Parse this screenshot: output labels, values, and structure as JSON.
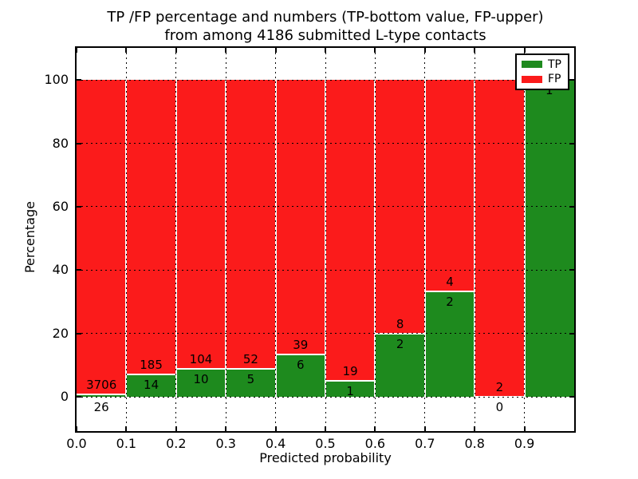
{
  "figure": {
    "background_color": "#ffffff",
    "text_color": "#000000"
  },
  "chart_data": {
    "type": "bar",
    "stacked": true,
    "normalized_to_percent": true,
    "title_lines": [
      "TP /FP percentage and numbers (TP-bottom value, FP-upper)",
      "from among 4186 submitted L-type contacts"
    ],
    "xlabel": "Predicted probability",
    "ylabel": "Percentage",
    "x_tick_labels": [
      "0.0",
      "0.1",
      "0.2",
      "0.3",
      "0.4",
      "0.5",
      "0.6",
      "0.7",
      "0.8",
      "0.9"
    ],
    "y_ticks": [
      0,
      20,
      40,
      60,
      80,
      100
    ],
    "y_tick_labels": [
      "0",
      "20",
      "40",
      "60",
      "80",
      "100"
    ],
    "xlim": [
      0.0,
      1.0
    ],
    "ylim": [
      -10.8,
      110.1
    ],
    "grid": {
      "style": "dotted",
      "color": "#000000",
      "x": true,
      "y": true
    },
    "colors": {
      "tp": "#1e8a1e",
      "fp": "#fb1b1b",
      "bar_edge": "#ffffff"
    },
    "bins": [
      {
        "x_start": 0.0,
        "x_end": 0.1,
        "tp": 26,
        "fp": 3706,
        "tp_label_pos": "below-axis"
      },
      {
        "x_start": 0.1,
        "x_end": 0.2,
        "tp": 14,
        "fp": 185,
        "tp_label_pos": "in-bar"
      },
      {
        "x_start": 0.2,
        "x_end": 0.3,
        "tp": 10,
        "fp": 104,
        "tp_label_pos": "in-bar"
      },
      {
        "x_start": 0.3,
        "x_end": 0.4,
        "tp": 5,
        "fp": 52,
        "tp_label_pos": "in-bar"
      },
      {
        "x_start": 0.4,
        "x_end": 0.5,
        "tp": 6,
        "fp": 39,
        "tp_label_pos": "in-bar"
      },
      {
        "x_start": 0.5,
        "x_end": 0.6,
        "tp": 1,
        "fp": 19,
        "tp_label_pos": "in-bar"
      },
      {
        "x_start": 0.6,
        "x_end": 0.7,
        "tp": 2,
        "fp": 8,
        "tp_label_pos": "in-bar"
      },
      {
        "x_start": 0.7,
        "x_end": 0.8,
        "tp": 2,
        "fp": 4,
        "tp_label_pos": "in-bar"
      },
      {
        "x_start": 0.8,
        "x_end": 0.9,
        "tp": 0,
        "fp": 2,
        "tp_label_pos": "below-axis"
      },
      {
        "x_start": 0.9,
        "x_end": 1.0,
        "tp": 1,
        "fp": 0,
        "tp_label_pos": "in-bar",
        "fp_label_hidden": true
      }
    ],
    "legend": {
      "position": "upper right",
      "items": [
        {
          "label": "TP",
          "color": "#1e8a1e"
        },
        {
          "label": "FP",
          "color": "#fb1b1b"
        }
      ]
    }
  }
}
